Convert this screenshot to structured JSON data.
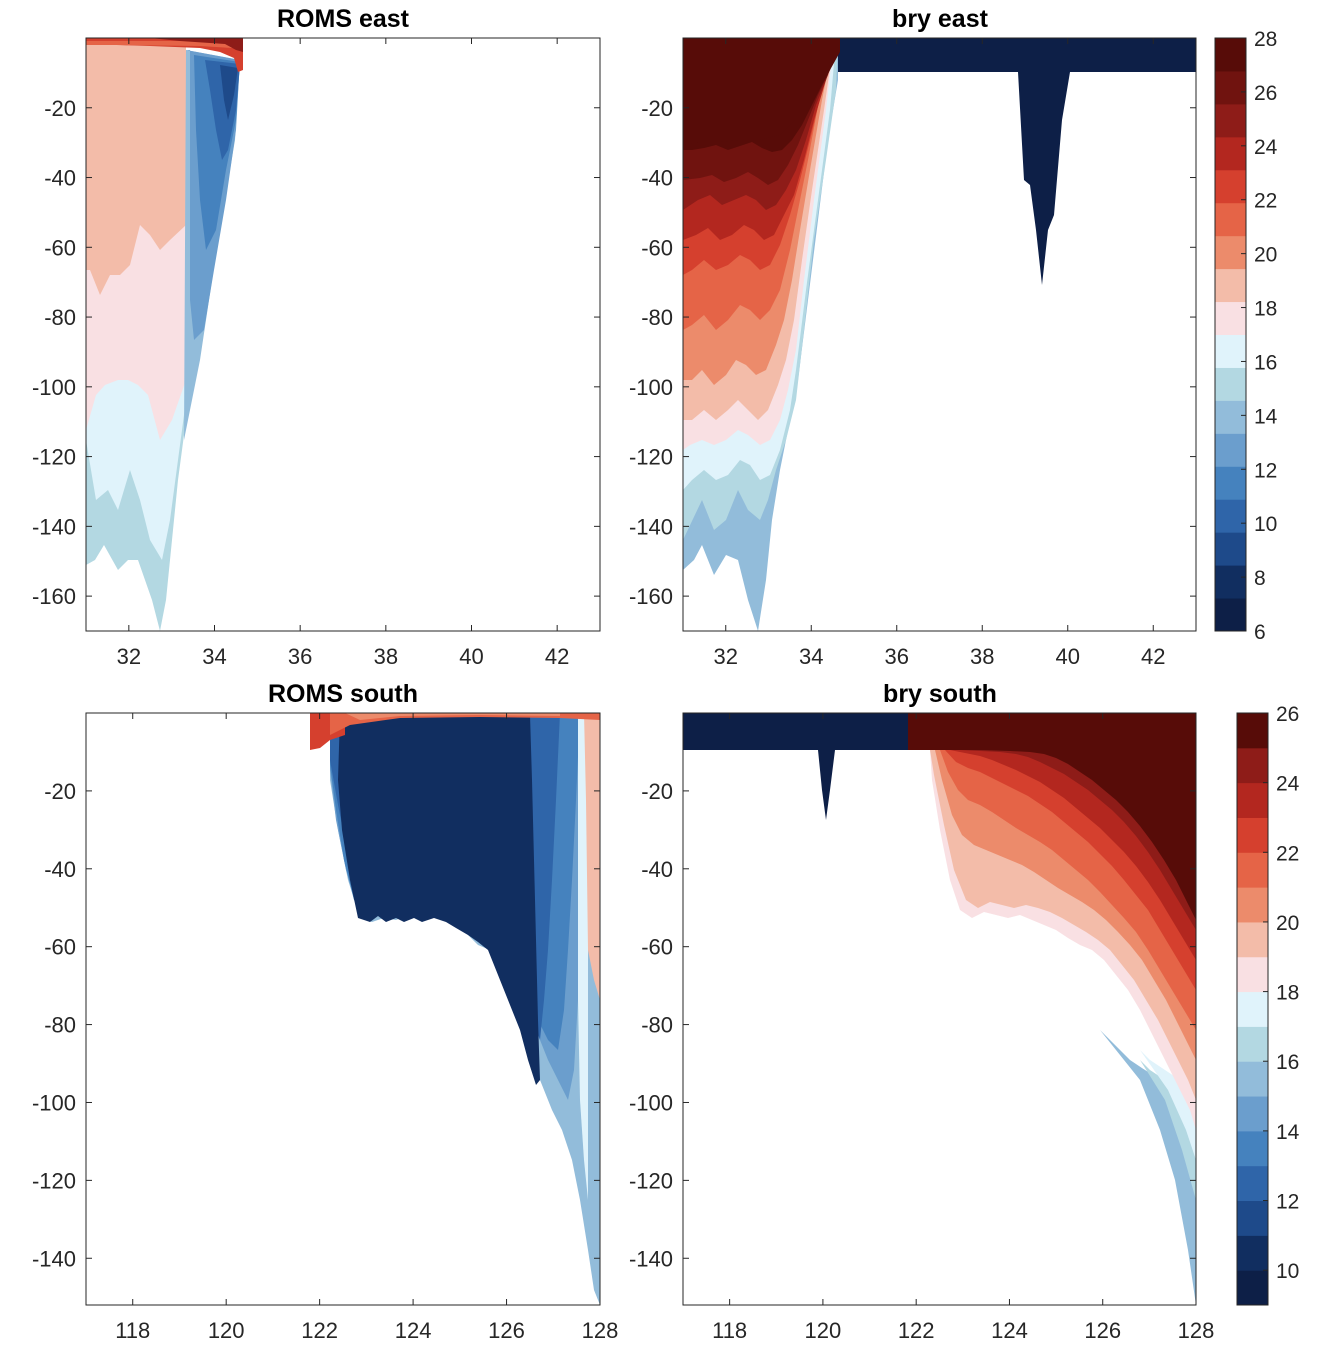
{
  "figure": {
    "background": "#ffffff"
  },
  "colors": {
    "east_levels": [
      "#0d1f47",
      "#112e60",
      "#1e4a8a",
      "#2f65a9",
      "#4582be",
      "#6b9ecd",
      "#92bcda",
      "#b3d8e2",
      "#e0f3fb",
      "#f9e0e3",
      "#f3bca9",
      "#ec8b6b",
      "#e56447",
      "#d5402e",
      "#b3271f",
      "#8e1c18",
      "#70130f",
      "#570c08"
    ],
    "south_levels": [
      "#0d1f47",
      "#112e60",
      "#1e4a8a",
      "#2f65a9",
      "#4582be",
      "#6b9ecd",
      "#92bcda",
      "#b3d8e2",
      "#e0f3fb",
      "#f9e0e3",
      "#f3bca9",
      "#ec8b6b",
      "#e56447",
      "#d5402e",
      "#b3271f",
      "#8e1c18",
      "#570c08"
    ],
    "landmask": "#ffffff"
  },
  "chart_data": [
    {
      "type": "heatmap",
      "title": "ROMS east",
      "xlim": [
        31,
        43
      ],
      "ylim": [
        -170,
        0
      ],
      "xticks": [
        "32",
        "34",
        "36",
        "38",
        "40",
        "42"
      ],
      "yticks": [
        "-20",
        "-40",
        "-60",
        "-80",
        "-100",
        "-120",
        "-140",
        "-160"
      ],
      "grid": false,
      "description_values": {
        "x": [
          31.0,
          32.0,
          33.0,
          33.4,
          33.7,
          34.0,
          34.5,
          34.6
        ],
        "bottom_depth": [
          -150,
          -135,
          -165,
          -110,
          -70,
          -40,
          -12,
          -8
        ],
        "surface_value": 26,
        "band_values_by_x": [
          {
            "x_range": [
              31.0,
              33.4
            ],
            "layers": [
              {
                "top": -3,
                "bottom": -65,
                "value": 19
              },
              {
                "top": -65,
                "bottom": -105,
                "value": 18
              },
              {
                "top": -105,
                "bottom": -140,
                "value": 17
              },
              {
                "top": -140,
                "bottom": -165,
                "value": 16
              }
            ]
          },
          {
            "x_range": [
              33.4,
              34.6
            ],
            "layers": [
              {
                "top": -5,
                "bottom": -120,
                "value": 11
              }
            ]
          }
        ]
      }
    },
    {
      "type": "heatmap",
      "title": "bry east",
      "xlim": [
        31,
        43
      ],
      "ylim": [
        -170,
        0
      ],
      "xticks": [
        "32",
        "34",
        "36",
        "38",
        "40",
        "42"
      ],
      "yticks": [
        "-20",
        "-40",
        "-60",
        "-80",
        "-100",
        "-120",
        "-140",
        "-160"
      ],
      "grid": false,
      "colorbar": {
        "ticks": [
          "6",
          "8",
          "10",
          "12",
          "14",
          "16",
          "18",
          "20",
          "22",
          "24",
          "26",
          "28"
        ],
        "range": [
          6,
          28
        ],
        "step": 1
      },
      "description_values": {
        "x": [
          31.0,
          32.0,
          32.75,
          33.5,
          34.0,
          34.7,
          35.0,
          39.0,
          39.4,
          39.8,
          43.0
        ],
        "bottom_depth": [
          -150,
          -140,
          -170,
          -110,
          -40,
          -10,
          -10,
          -10,
          -68,
          -10,
          -10
        ],
        "fill_outside_coast_value": 6
      }
    },
    {
      "type": "heatmap",
      "title": "ROMS south",
      "xlim": [
        117,
        128
      ],
      "ylim": [
        -152,
        0
      ],
      "xticks": [
        "118",
        "120",
        "122",
        "124",
        "126",
        "128"
      ],
      "yticks": [
        "-20",
        "-40",
        "-60",
        "-80",
        "-100",
        "-120",
        "-140"
      ],
      "grid": false,
      "description_values": {
        "x": [
          121.8,
          122.5,
          123.0,
          124.0,
          125.0,
          126.0,
          126.8,
          127.5,
          128.0
        ],
        "bottom_depth": [
          -9,
          -20,
          -52,
          -50,
          -58,
          -70,
          -95,
          -115,
          -150
        ],
        "dominant_value": 10
      }
    },
    {
      "type": "heatmap",
      "title": "bry south",
      "xlim": [
        117,
        128
      ],
      "ylim": [
        -152,
        0
      ],
      "xticks": [
        "118",
        "120",
        "122",
        "124",
        "126",
        "128"
      ],
      "yticks": [
        "-20",
        "-40",
        "-60",
        "-80",
        "-100",
        "-120",
        "-140"
      ],
      "grid": false,
      "colorbar": {
        "ticks": [
          "10",
          "12",
          "14",
          "16",
          "18",
          "20",
          "22",
          "24",
          "26"
        ],
        "range": [
          9,
          26
        ],
        "step": 1
      },
      "description_values": {
        "x": [
          117.0,
          119.8,
          120.0,
          120.2,
          121.8,
          122.5,
          123.0,
          124.0,
          125.0,
          126.0,
          127.0,
          128.0
        ],
        "bottom_depth": [
          -9,
          -9,
          -27,
          -9,
          -9,
          -10,
          -52,
          -50,
          -57,
          -70,
          -95,
          -150
        ],
        "fill_outside_coast_value": 9
      }
    }
  ]
}
